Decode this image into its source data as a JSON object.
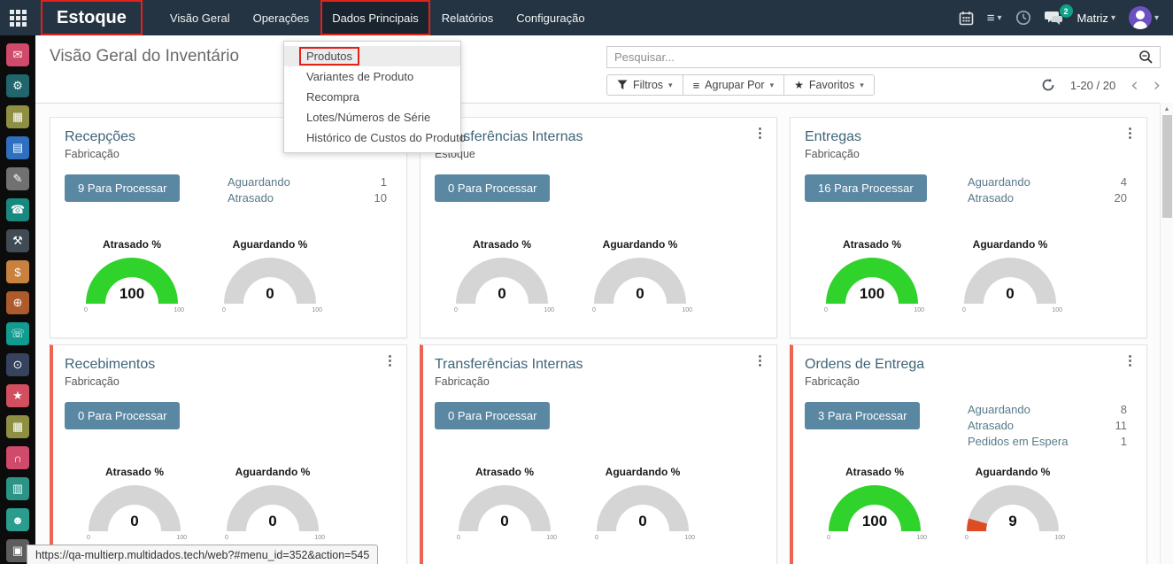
{
  "navbar": {
    "brand": "Estoque",
    "menu": [
      {
        "label": "Visão Geral",
        "active": false
      },
      {
        "label": "Operações",
        "active": false
      },
      {
        "label": "Dados Principais",
        "active": true
      },
      {
        "label": "Relatórios",
        "active": false
      },
      {
        "label": "Configuração",
        "active": false
      }
    ],
    "company": "Matriz",
    "chat_badge": "2"
  },
  "dropdown": {
    "items": [
      "Produtos",
      "Variantes de Produto",
      "Recompra",
      "Lotes/Números de Série",
      "Histórico de Custos do Produto"
    ]
  },
  "control_panel": {
    "title": "Visão Geral do Inventário",
    "search_placeholder": "Pesquisar...",
    "filters_label": "Filtros",
    "group_by_label": "Agrupar Por",
    "favorites_label": "Favoritos",
    "pager": "1-20 / 20"
  },
  "cards": [
    {
      "title": "Recepções",
      "subtitle": "Fabricação",
      "button": "9 Para Processar",
      "alert": false,
      "stats": [
        {
          "label": "Aguardando",
          "value": "1"
        },
        {
          "label": "Atrasado",
          "value": "10"
        }
      ],
      "gauges": [
        {
          "label": "Atrasado %",
          "value": 100,
          "color": "green"
        },
        {
          "label": "Aguardando %",
          "value": 0,
          "color": "gray"
        }
      ]
    },
    {
      "title": "Transferências Internas",
      "subtitle": "Estoque",
      "button": "0 Para Processar",
      "alert": false,
      "stats": [],
      "gauges": [
        {
          "label": "Atrasado %",
          "value": 0,
          "color": "gray"
        },
        {
          "label": "Aguardando %",
          "value": 0,
          "color": "gray"
        }
      ]
    },
    {
      "title": "Entregas",
      "subtitle": "Fabricação",
      "button": "16 Para Processar",
      "alert": false,
      "stats": [
        {
          "label": "Aguardando",
          "value": "4"
        },
        {
          "label": "Atrasado",
          "value": "20"
        }
      ],
      "gauges": [
        {
          "label": "Atrasado %",
          "value": 100,
          "color": "green"
        },
        {
          "label": "Aguardando %",
          "value": 0,
          "color": "gray"
        }
      ]
    },
    {
      "title": "Recebimentos",
      "subtitle": "Fabricação",
      "button": "0 Para Processar",
      "alert": true,
      "stats": [],
      "gauges": [
        {
          "label": "Atrasado %",
          "value": 0,
          "color": "gray"
        },
        {
          "label": "Aguardando %",
          "value": 0,
          "color": "gray"
        }
      ]
    },
    {
      "title": "Transferências Internas",
      "subtitle": "Fabricação",
      "button": "0 Para Processar",
      "alert": true,
      "stats": [],
      "gauges": [
        {
          "label": "Atrasado %",
          "value": 0,
          "color": "gray"
        },
        {
          "label": "Aguardando %",
          "value": 0,
          "color": "gray"
        }
      ]
    },
    {
      "title": "Ordens de Entrega",
      "subtitle": "Fabricação",
      "button": "3 Para Processar",
      "alert": true,
      "stats": [
        {
          "label": "Aguardando",
          "value": "8"
        },
        {
          "label": "Atrasado",
          "value": "11"
        },
        {
          "label": "Pedidos em Espera",
          "value": "1"
        }
      ],
      "gauges": [
        {
          "label": "Atrasado %",
          "value": 100,
          "color": "green"
        },
        {
          "label": "Aguardando %",
          "value": 9,
          "color": "red"
        }
      ]
    }
  ],
  "gauge_scale": {
    "min": "0",
    "max": "100"
  },
  "sidebar": {
    "apps": [
      {
        "name": "chat-app-icon",
        "color": "#cf4a6b",
        "glyph": "✉"
      },
      {
        "name": "gear-app-icon",
        "color": "#20666c",
        "glyph": "⚙"
      },
      {
        "name": "calendar-app-icon",
        "color": "#8e8f43",
        "glyph": "▦"
      },
      {
        "name": "document-app-icon",
        "color": "#2e6fc0",
        "glyph": "▤"
      },
      {
        "name": "pencil-app-icon",
        "color": "#717171",
        "glyph": "✎"
      },
      {
        "name": "contacts-app-icon",
        "color": "#18897e",
        "glyph": "☎"
      },
      {
        "name": "handshake-app-icon",
        "color": "#414b55",
        "glyph": "⚒"
      },
      {
        "name": "invoice-app-icon",
        "color": "#c8813f",
        "glyph": "$"
      },
      {
        "name": "globe-app-icon",
        "color": "#ad5a2c",
        "glyph": "⊕"
      },
      {
        "name": "phone-app-icon",
        "color": "#129b90",
        "glyph": "☏"
      },
      {
        "name": "camera-app-icon",
        "color": "#36425e",
        "glyph": "⊙"
      },
      {
        "name": "chart-star-app-icon",
        "color": "#d24f5f",
        "glyph": "★"
      },
      {
        "name": "calendar2-app-icon",
        "color": "#8e8f43",
        "glyph": "▦"
      },
      {
        "name": "headphones-app-icon",
        "color": "#cf4a6b",
        "glyph": "∩"
      },
      {
        "name": "chart-clock-app-icon",
        "color": "#2b9486",
        "glyph": "▥"
      },
      {
        "name": "person-app-icon",
        "color": "#2a9d8f",
        "glyph": "☻"
      },
      {
        "name": "printer-app-icon",
        "color": "#5d5d5d",
        "glyph": "▣"
      }
    ]
  },
  "status_bar": {
    "url": "https://qa-multierp.multidados.tech/web?#menu_id=352&action=545"
  },
  "icons": {
    "kebab": "⋮",
    "caret": "▾",
    "star": "★",
    "list": "≡",
    "chev_left": "‹",
    "chev_right": "›",
    "scroll_up": "▲"
  },
  "colors": {
    "annotation_red": "#e0221a",
    "card_alert_border": "#ec6454",
    "button_blue": "#5a87a2",
    "gauge": {
      "green": "#2fd32b",
      "red": "#dd4c22",
      "gray": "#d5d5d5",
      "track": "#d5d5d5"
    }
  }
}
